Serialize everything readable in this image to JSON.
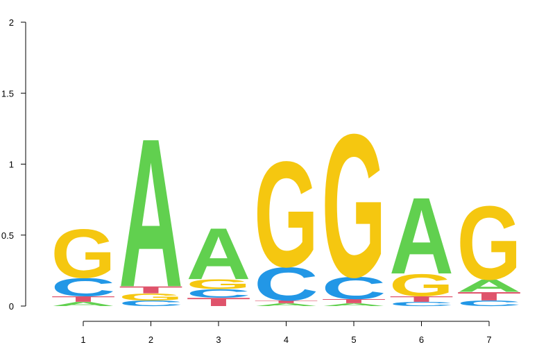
{
  "chart_data": {
    "type": "sequence-logo",
    "title": "",
    "xlabel": "",
    "ylabel": "",
    "ylim": [
      0,
      2
    ],
    "y_ticks": [
      {
        "value": 0,
        "label": "0"
      },
      {
        "value": 0.5,
        "label": "0.5"
      },
      {
        "value": 1,
        "label": "1"
      },
      {
        "value": 1.5,
        "label": "1.5"
      },
      {
        "value": 2,
        "label": "2"
      }
    ],
    "positions": [
      "1",
      "2",
      "3",
      "4",
      "5",
      "6",
      "7"
    ],
    "letter_colors": {
      "A": "#61d04f",
      "C": "#2297e6",
      "G": "#f5c710",
      "T": "#df536b"
    },
    "stacks": [
      [
        {
          "letter": "A",
          "height": 0.03
        },
        {
          "letter": "T",
          "height": 0.04
        },
        {
          "letter": "C",
          "height": 0.13
        },
        {
          "letter": "G",
          "height": 0.35
        }
      ],
      [
        {
          "letter": "C",
          "height": 0.04
        },
        {
          "letter": "G",
          "height": 0.05
        },
        {
          "letter": "T",
          "height": 0.05
        },
        {
          "letter": "A",
          "height": 1.07
        }
      ],
      [
        {
          "letter": "T",
          "height": 0.06
        },
        {
          "letter": "C",
          "height": 0.06
        },
        {
          "letter": "G",
          "height": 0.07
        },
        {
          "letter": "A",
          "height": 0.37
        }
      ],
      [
        {
          "letter": "A",
          "height": 0.02
        },
        {
          "letter": "T",
          "height": 0.02
        },
        {
          "letter": "C",
          "height": 0.24
        },
        {
          "letter": "G",
          "height": 0.76
        }
      ],
      [
        {
          "letter": "A",
          "height": 0.02
        },
        {
          "letter": "T",
          "height": 0.03
        },
        {
          "letter": "C",
          "height": 0.16
        },
        {
          "letter": "G",
          "height": 1.03
        }
      ],
      [
        {
          "letter": "C",
          "height": 0.03
        },
        {
          "letter": "T",
          "height": 0.04
        },
        {
          "letter": "G",
          "height": 0.16
        },
        {
          "letter": "A",
          "height": 0.55
        }
      ],
      [
        {
          "letter": "C",
          "height": 0.04
        },
        {
          "letter": "T",
          "height": 0.06
        },
        {
          "letter": "A",
          "height": 0.09
        },
        {
          "letter": "G",
          "height": 0.53
        }
      ]
    ]
  }
}
